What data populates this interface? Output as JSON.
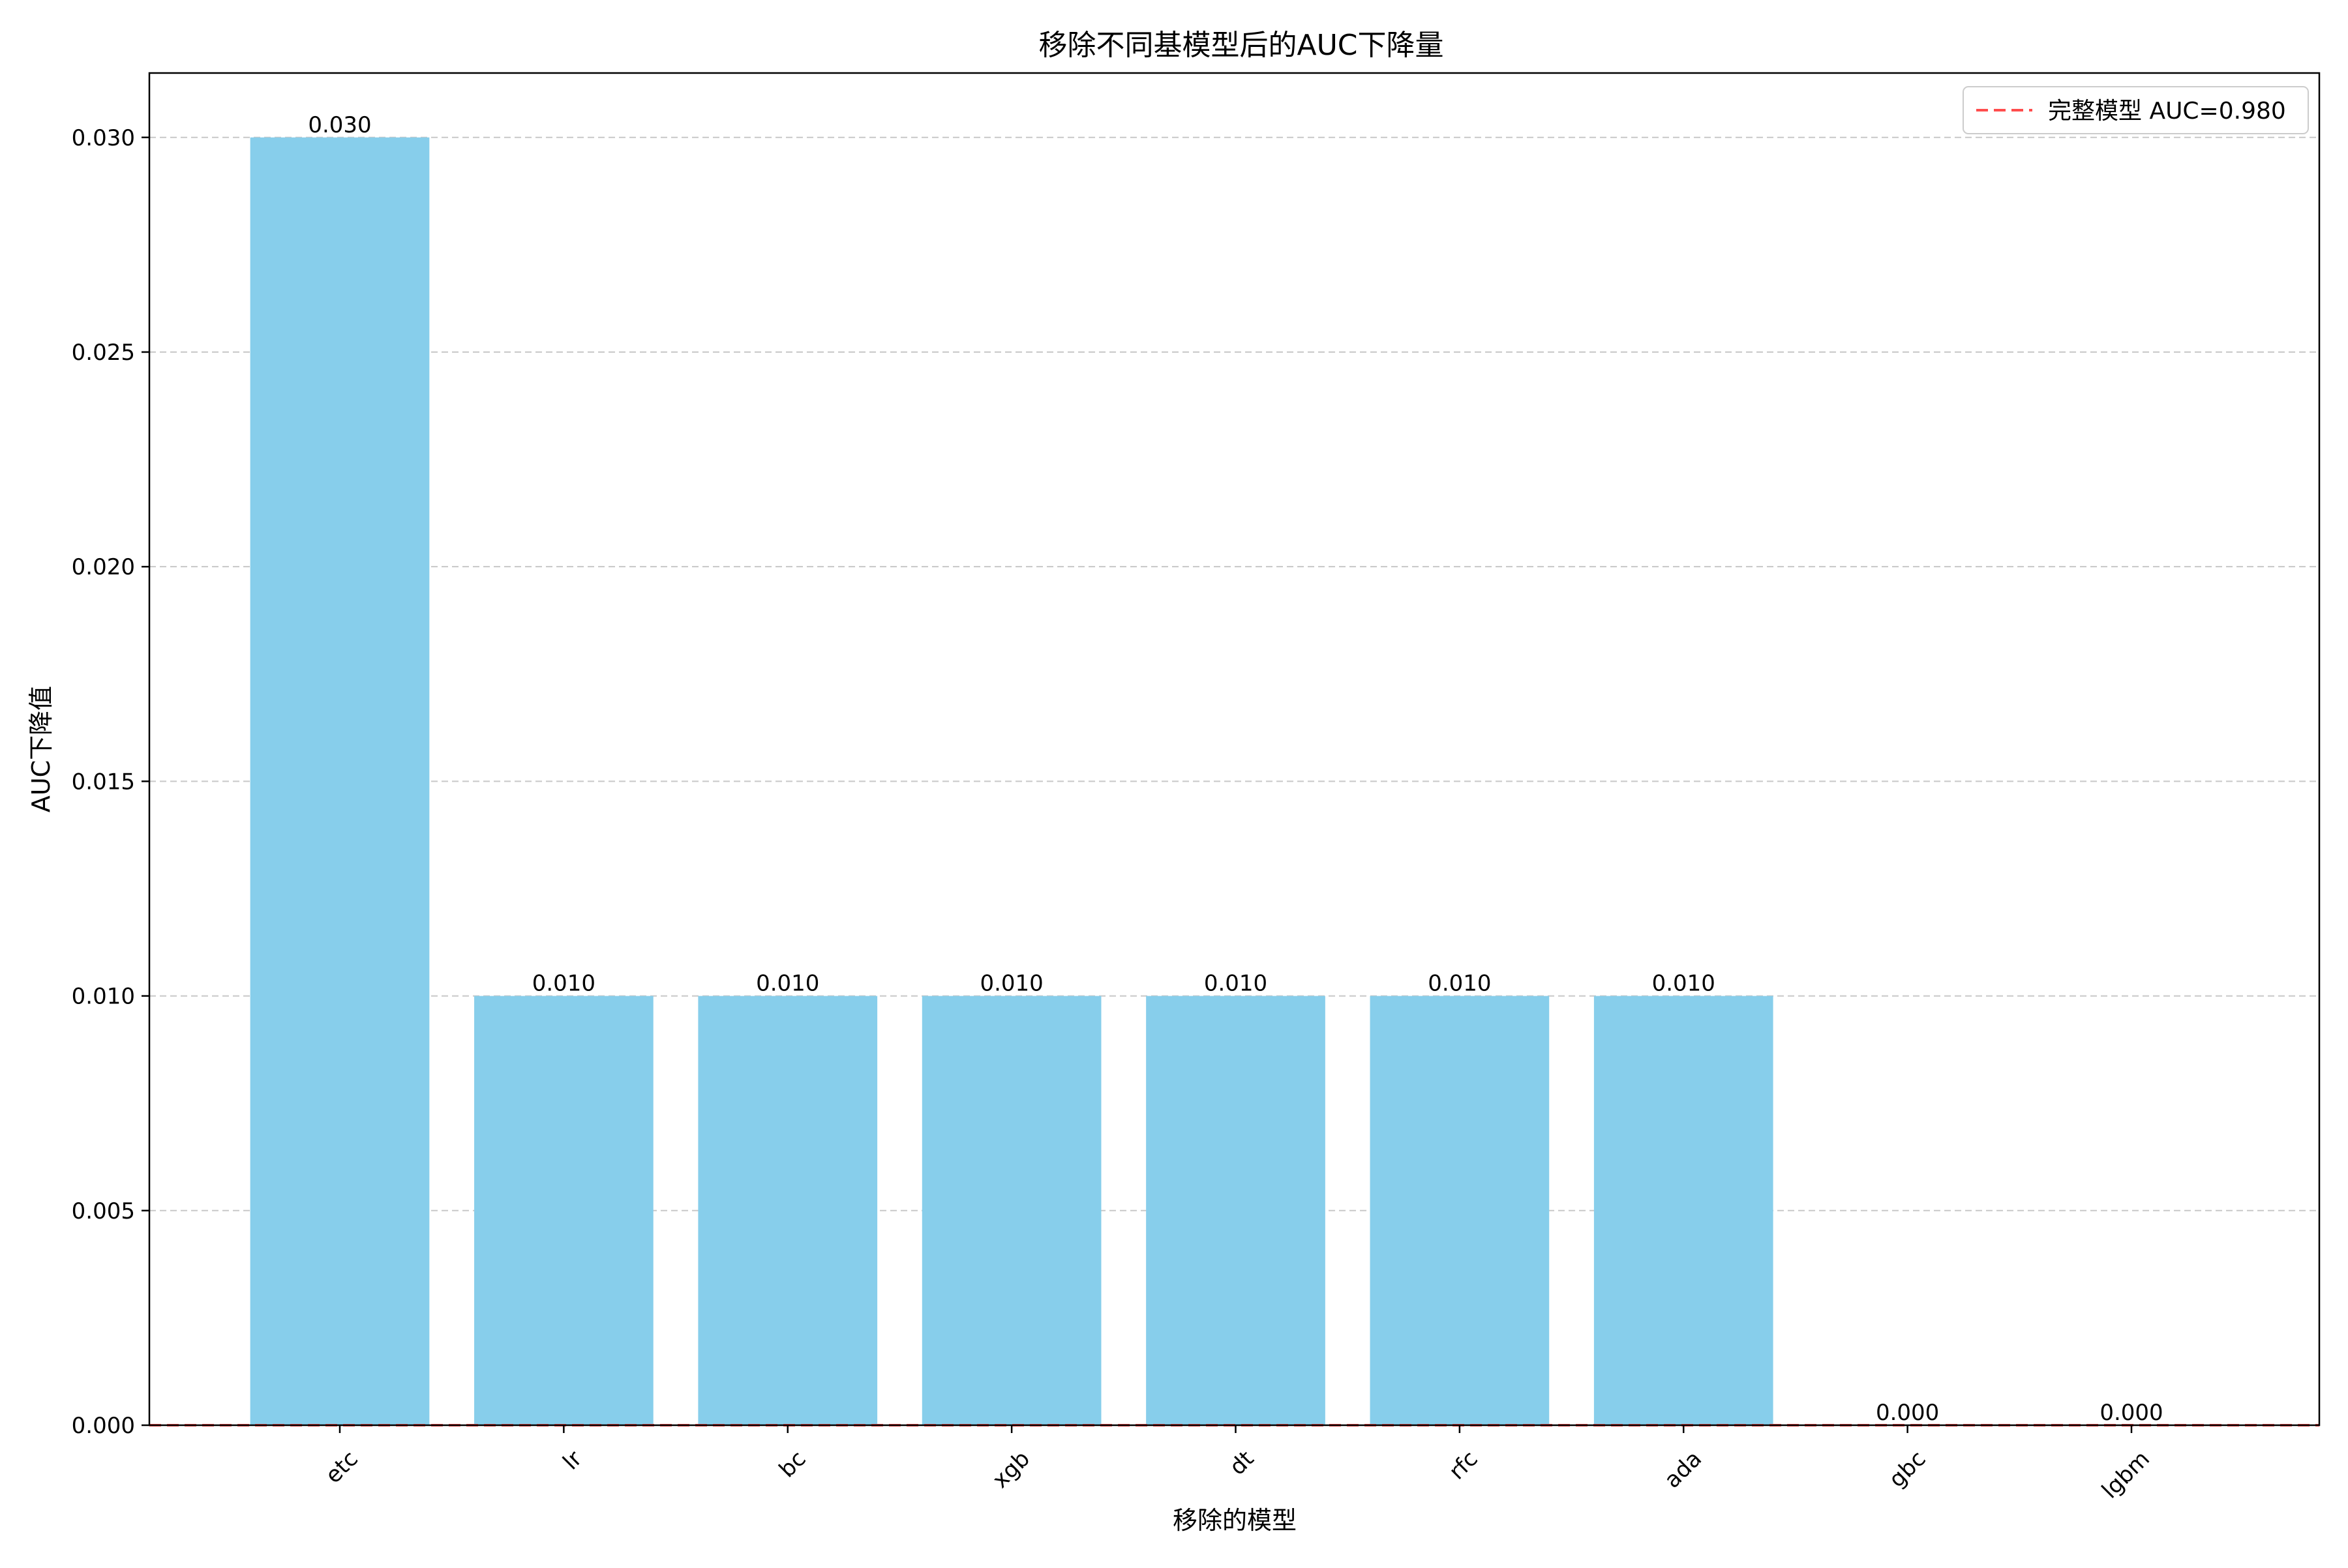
{
  "chart_data": {
    "type": "bar",
    "title": "移除不同基模型后的AUC下降量",
    "xlabel": "移除的模型",
    "ylabel": "AUC下降值",
    "categories": [
      "etc",
      "lr",
      "bc",
      "xgb",
      "dt",
      "rfc",
      "ada",
      "gbc",
      "lgbm"
    ],
    "values": [
      0.03,
      0.01,
      0.01,
      0.01,
      0.01,
      0.01,
      0.01,
      0.0,
      0.0
    ],
    "data_labels": [
      "0.030",
      "0.010",
      "0.010",
      "0.010",
      "0.010",
      "0.010",
      "0.010",
      "0.000",
      "0.000"
    ],
    "ylim": [
      0,
      0.0315
    ],
    "yticks": [
      0.0,
      0.005,
      0.01,
      0.015,
      0.02,
      0.025,
      0.03
    ],
    "ytick_labels": [
      "0.000",
      "0.005",
      "0.010",
      "0.015",
      "0.020",
      "0.025",
      "0.030"
    ],
    "x_tick_rotation_deg": 45,
    "grid": "y-dashed",
    "bar_color": "#87CEEB",
    "reference_line": {
      "value": 0,
      "label": "完整模型 AUC=0.980",
      "color": "#FF4D4D",
      "style": "dashed"
    },
    "legend_position": "top-right"
  }
}
